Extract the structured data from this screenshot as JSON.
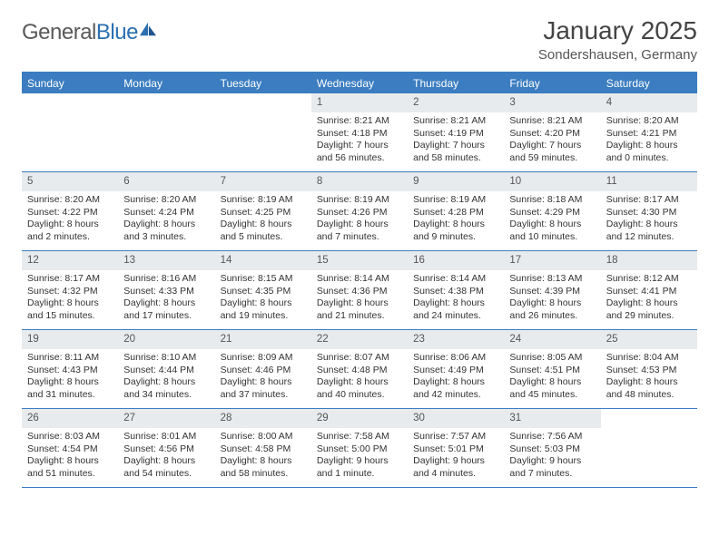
{
  "brand": {
    "part1": "General",
    "part2": "Blue"
  },
  "title": "January 2025",
  "location": "Sondershausen, Germany",
  "colors": {
    "accent": "#3b7dc0",
    "headerbg": "#3b7dc0",
    "daynum_bg": "#e8ebee",
    "text": "#333333",
    "muted": "#555555"
  },
  "day_names": [
    "Sunday",
    "Monday",
    "Tuesday",
    "Wednesday",
    "Thursday",
    "Friday",
    "Saturday"
  ],
  "calendar": {
    "first_weekday_index": 3,
    "days_in_month": 31
  },
  "days": {
    "1": {
      "sunrise": "8:21 AM",
      "sunset": "4:18 PM",
      "daylight": "7 hours and 56 minutes."
    },
    "2": {
      "sunrise": "8:21 AM",
      "sunset": "4:19 PM",
      "daylight": "7 hours and 58 minutes."
    },
    "3": {
      "sunrise": "8:21 AM",
      "sunset": "4:20 PM",
      "daylight": "7 hours and 59 minutes."
    },
    "4": {
      "sunrise": "8:20 AM",
      "sunset": "4:21 PM",
      "daylight": "8 hours and 0 minutes."
    },
    "5": {
      "sunrise": "8:20 AM",
      "sunset": "4:22 PM",
      "daylight": "8 hours and 2 minutes."
    },
    "6": {
      "sunrise": "8:20 AM",
      "sunset": "4:24 PM",
      "daylight": "8 hours and 3 minutes."
    },
    "7": {
      "sunrise": "8:19 AM",
      "sunset": "4:25 PM",
      "daylight": "8 hours and 5 minutes."
    },
    "8": {
      "sunrise": "8:19 AM",
      "sunset": "4:26 PM",
      "daylight": "8 hours and 7 minutes."
    },
    "9": {
      "sunrise": "8:19 AM",
      "sunset": "4:28 PM",
      "daylight": "8 hours and 9 minutes."
    },
    "10": {
      "sunrise": "8:18 AM",
      "sunset": "4:29 PM",
      "daylight": "8 hours and 10 minutes."
    },
    "11": {
      "sunrise": "8:17 AM",
      "sunset": "4:30 PM",
      "daylight": "8 hours and 12 minutes."
    },
    "12": {
      "sunrise": "8:17 AM",
      "sunset": "4:32 PM",
      "daylight": "8 hours and 15 minutes."
    },
    "13": {
      "sunrise": "8:16 AM",
      "sunset": "4:33 PM",
      "daylight": "8 hours and 17 minutes."
    },
    "14": {
      "sunrise": "8:15 AM",
      "sunset": "4:35 PM",
      "daylight": "8 hours and 19 minutes."
    },
    "15": {
      "sunrise": "8:14 AM",
      "sunset": "4:36 PM",
      "daylight": "8 hours and 21 minutes."
    },
    "16": {
      "sunrise": "8:14 AM",
      "sunset": "4:38 PM",
      "daylight": "8 hours and 24 minutes."
    },
    "17": {
      "sunrise": "8:13 AM",
      "sunset": "4:39 PM",
      "daylight": "8 hours and 26 minutes."
    },
    "18": {
      "sunrise": "8:12 AM",
      "sunset": "4:41 PM",
      "daylight": "8 hours and 29 minutes."
    },
    "19": {
      "sunrise": "8:11 AM",
      "sunset": "4:43 PM",
      "daylight": "8 hours and 31 minutes."
    },
    "20": {
      "sunrise": "8:10 AM",
      "sunset": "4:44 PM",
      "daylight": "8 hours and 34 minutes."
    },
    "21": {
      "sunrise": "8:09 AM",
      "sunset": "4:46 PM",
      "daylight": "8 hours and 37 minutes."
    },
    "22": {
      "sunrise": "8:07 AM",
      "sunset": "4:48 PM",
      "daylight": "8 hours and 40 minutes."
    },
    "23": {
      "sunrise": "8:06 AM",
      "sunset": "4:49 PM",
      "daylight": "8 hours and 42 minutes."
    },
    "24": {
      "sunrise": "8:05 AM",
      "sunset": "4:51 PM",
      "daylight": "8 hours and 45 minutes."
    },
    "25": {
      "sunrise": "8:04 AM",
      "sunset": "4:53 PM",
      "daylight": "8 hours and 48 minutes."
    },
    "26": {
      "sunrise": "8:03 AM",
      "sunset": "4:54 PM",
      "daylight": "8 hours and 51 minutes."
    },
    "27": {
      "sunrise": "8:01 AM",
      "sunset": "4:56 PM",
      "daylight": "8 hours and 54 minutes."
    },
    "28": {
      "sunrise": "8:00 AM",
      "sunset": "4:58 PM",
      "daylight": "8 hours and 58 minutes."
    },
    "29": {
      "sunrise": "7:58 AM",
      "sunset": "5:00 PM",
      "daylight": "9 hours and 1 minute."
    },
    "30": {
      "sunrise": "7:57 AM",
      "sunset": "5:01 PM",
      "daylight": "9 hours and 4 minutes."
    },
    "31": {
      "sunrise": "7:56 AM",
      "sunset": "5:03 PM",
      "daylight": "9 hours and 7 minutes."
    }
  },
  "labels": {
    "sunrise": "Sunrise:",
    "sunset": "Sunset:",
    "daylight": "Daylight:"
  }
}
